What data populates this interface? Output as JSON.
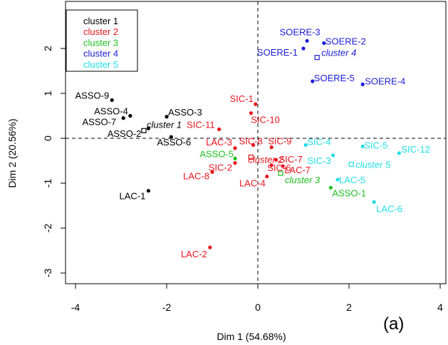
{
  "chart_data": {
    "type": "scatter",
    "xlabel": "Dim 1 (54.68%)",
    "ylabel": "Dim 2 (20.56%)",
    "xlim": [
      -4.4,
      4.2
    ],
    "ylim": [
      -3.3,
      2.7
    ],
    "xticks": [
      "-4",
      "-2",
      "0",
      "2",
      "4"
    ],
    "yticks": [
      "-3",
      "-2",
      "-1",
      "0",
      "1",
      "2"
    ],
    "reference_lines": {
      "x": 0,
      "y": 0,
      "style": "dashed"
    },
    "panel_tag": "(a)",
    "legend": {
      "position": "top-left",
      "entries": [
        {
          "label": "cluster 1",
          "color": "#000000"
        },
        {
          "label": "cluster 2",
          "color": "#e8141c"
        },
        {
          "label": "cluster 3",
          "color": "#1fbf1f"
        },
        {
          "label": "cluster 4",
          "color": "#1c1cd6"
        },
        {
          "label": "cluster 5",
          "color": "#1fdde6"
        }
      ]
    },
    "series": [
      {
        "name": "cluster 1",
        "color": "#000000",
        "points": [
          {
            "label": "ASSO-9",
            "x": -3.2,
            "y": 0.85
          },
          {
            "label": "ASSO-4",
            "x": -2.8,
            "y": 0.5
          },
          {
            "label": "ASSO-7",
            "x": -2.95,
            "y": 0.45
          },
          {
            "label": "ASSO-3",
            "x": -2.0,
            "y": 0.48
          },
          {
            "label": "ASSO-2",
            "x": -2.4,
            "y": 0.22
          },
          {
            "label": "ASSO-6",
            "x": -1.9,
            "y": 0.03
          },
          {
            "label": "LAC-1",
            "x": -2.4,
            "y": -1.17
          }
        ],
        "center": {
          "label": "cluster 1",
          "x": -2.5,
          "y": 0.17
        }
      },
      {
        "name": "cluster 2",
        "color": "#e8141c",
        "points": [
          {
            "label": "SIC-1",
            "x": -0.05,
            "y": 0.76
          },
          {
            "label": "SIC-10",
            "x": -0.15,
            "y": 0.56
          },
          {
            "label": "SIC-11",
            "x": -0.85,
            "y": 0.2
          },
          {
            "label": "SIC-8",
            "x": -0.1,
            "y": -0.15
          },
          {
            "label": "SIC-9",
            "x": 0.3,
            "y": -0.2
          },
          {
            "label": "LAC-3",
            "x": -0.5,
            "y": -0.22
          },
          {
            "label": "SIC-7",
            "x": 0.4,
            "y": -0.48
          },
          {
            "label": "SIC-6",
            "x": 0.3,
            "y": -0.6
          },
          {
            "label": "LAC-7",
            "x": 0.55,
            "y": -0.62
          },
          {
            "label": "SIC-2",
            "x": -0.5,
            "y": -0.55
          },
          {
            "label": "LAC-8",
            "x": -1.0,
            "y": -0.75
          },
          {
            "label": "LAC-4",
            "x": 0.2,
            "y": -0.85
          },
          {
            "label": "LAC-2",
            "x": -1.05,
            "y": -2.43
          }
        ],
        "center": {
          "label": "cluster 2",
          "x": -0.15,
          "y": -0.42
        }
      },
      {
        "name": "cluster 3",
        "color": "#1fbf1f",
        "points": [
          {
            "label": "ASSO-5",
            "x": -0.5,
            "y": -0.45
          },
          {
            "label": "ASSO-1",
            "x": 1.6,
            "y": -1.1
          }
        ],
        "center": {
          "label": "cluster 3",
          "x": 0.5,
          "y": -0.78
        }
      },
      {
        "name": "cluster 4",
        "color": "#1c1cd6",
        "points": [
          {
            "label": "SOERE-3",
            "x": 1.08,
            "y": 2.17
          },
          {
            "label": "SOERE-2",
            "x": 1.45,
            "y": 2.12
          },
          {
            "label": "SOERE-1",
            "x": 1.0,
            "y": 2.0
          },
          {
            "label": "SOERE-5",
            "x": 1.2,
            "y": 1.27
          },
          {
            "label": "SOERE-4",
            "x": 2.3,
            "y": 1.2
          }
        ],
        "center": {
          "label": "cluster 4",
          "x": 1.3,
          "y": 1.8
        }
      },
      {
        "name": "cluster 5",
        "color": "#1fdde6",
        "points": [
          {
            "label": "SIC-4",
            "x": 1.05,
            "y": -0.15
          },
          {
            "label": "SIC-5",
            "x": 2.3,
            "y": -0.18
          },
          {
            "label": "SIC-12",
            "x": 3.1,
            "y": -0.33
          },
          {
            "label": "SIC-3",
            "x": 1.65,
            "y": -0.38
          },
          {
            "label": "LAC-5",
            "x": 1.75,
            "y": -0.92
          },
          {
            "label": "LAC-6",
            "x": 2.55,
            "y": -1.42
          }
        ],
        "center": {
          "label": "cluster 5",
          "x": 2.05,
          "y": -0.58
        }
      }
    ]
  }
}
